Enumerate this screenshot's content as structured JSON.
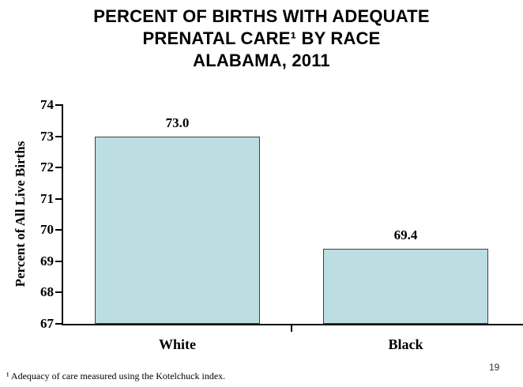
{
  "title": {
    "lines": [
      "PERCENT OF BIRTHS WITH ADEQUATE",
      "PRENATAL CARE¹ BY RACE",
      "ALABAMA, 2011"
    ]
  },
  "footnote": {
    "text": "¹ Adequacy of care measured using the Kotelchuck index."
  },
  "page_number": "19",
  "chart_data": {
    "type": "bar",
    "title": "PERCENT OF BIRTHS WITH ADEQUATE PRENATAL CARE¹ BY RACE ALABAMA, 2011",
    "categories": [
      "White",
      "Black"
    ],
    "values": [
      73.0,
      69.4
    ],
    "xlabel": "",
    "ylabel": "Percent of All Live Births",
    "ylim": [
      67,
      74
    ],
    "yticks": [
      67,
      68,
      69,
      70,
      71,
      72,
      73,
      74
    ],
    "grid": false,
    "legend": false,
    "colors": {
      "bar_fill": "#BCDEE3",
      "bar_border": "#404040",
      "axis": "#000000",
      "text": "#000000"
    }
  }
}
